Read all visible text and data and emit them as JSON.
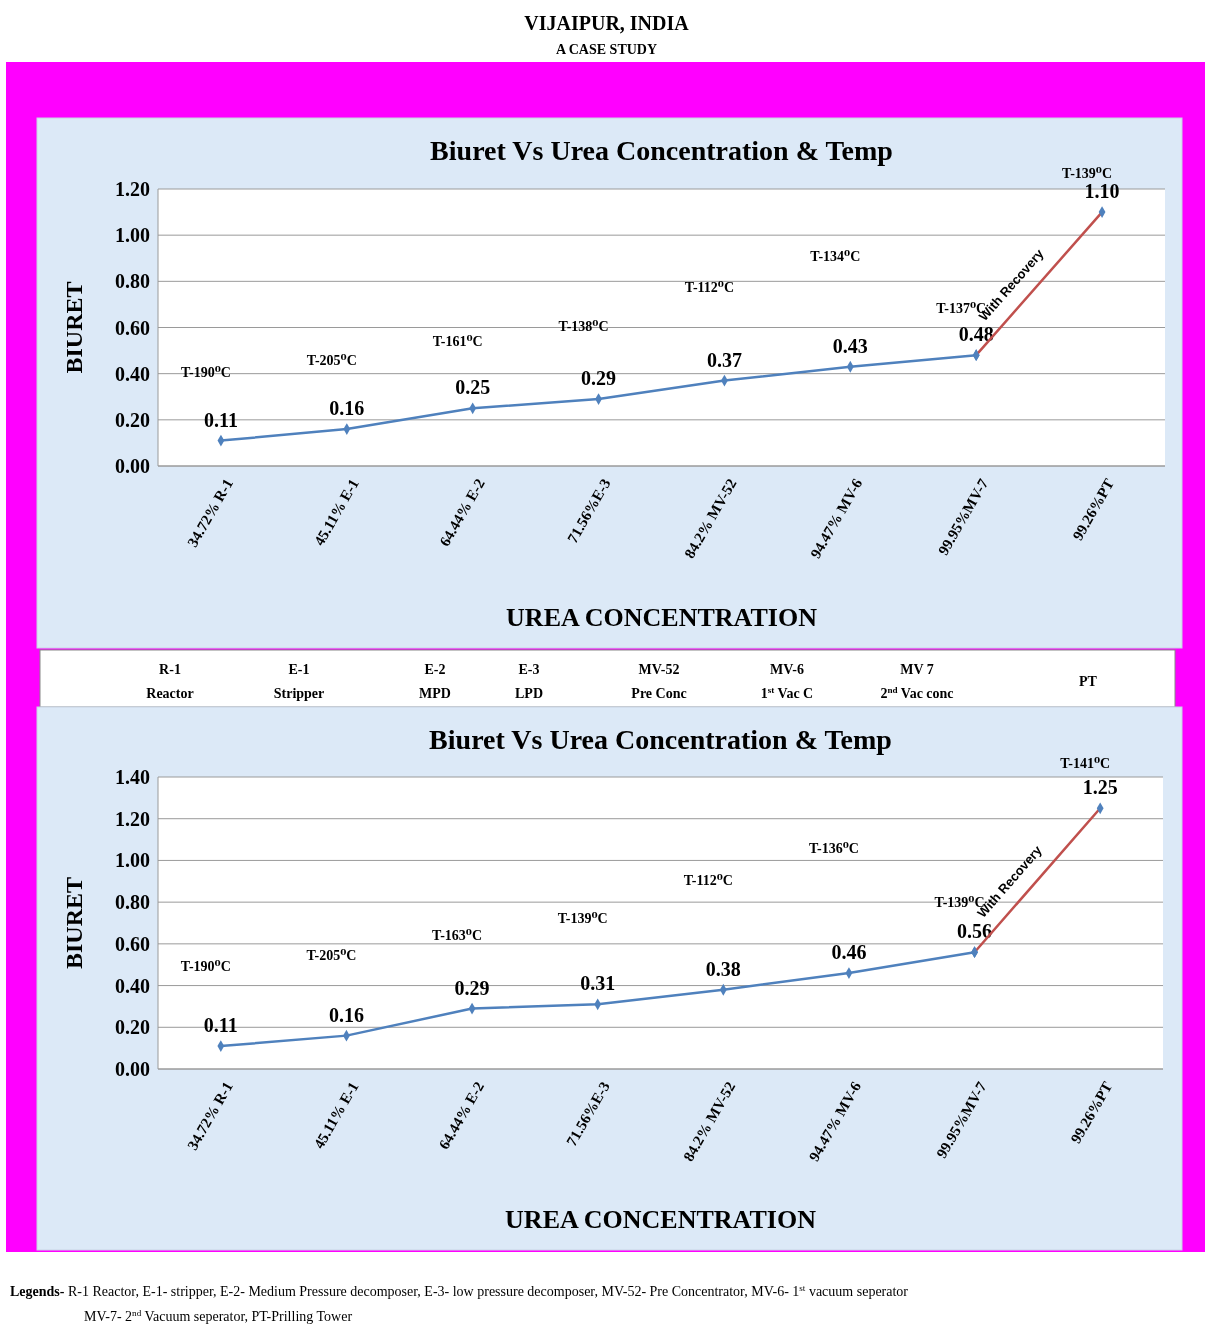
{
  "chart_data": [
    {
      "type": "other",
      "title": "VIJAIPUR, INDIA",
      "subtitle": "A CASE STUDY"
    },
    {
      "type": "line",
      "title": "Biuret Vs Urea Concentration & Temp",
      "xlabel": "UREA CONCENTRATION",
      "ylabel": "BIURET",
      "categories": [
        "34.72% R-1",
        "45.11% E-1",
        "64.44% E-2",
        "71.56%E-3",
        "84.2% MV-52",
        "94.47% MV-6",
        "99.95%MV-7",
        "99.26%PT"
      ],
      "series": [
        {
          "color": "#4f81bd",
          "values": [
            0.11,
            0.16,
            0.25,
            0.29,
            0.37,
            0.43,
            0.48,
            null
          ],
          "value_labels": [
            "0.11",
            "0.16",
            "0.25",
            "0.29",
            "0.37",
            "0.43",
            "0.48",
            null
          ]
        },
        {
          "color": "#c0504d",
          "values": [
            null,
            null,
            null,
            null,
            null,
            null,
            0.48,
            1.1
          ],
          "value_labels": [
            null,
            null,
            null,
            null,
            null,
            null,
            null,
            "1.10"
          ]
        }
      ],
      "ylim": [
        0,
        1.2
      ],
      "yticks": [
        {
          "value": 0,
          "label": "0.00"
        },
        {
          "value": 0.2,
          "label": "0.20"
        },
        {
          "value": 0.4,
          "label": "0.40"
        },
        {
          "value": 0.6,
          "label": "0.60"
        },
        {
          "value": 0.8,
          "label": "0.80"
        },
        {
          "value": 1,
          "label": "1.00"
        },
        {
          "value": 1.2,
          "label": "1.20"
        }
      ],
      "grid": "y",
      "marker": "diamond",
      "line_style": "solid",
      "annotations": [
        "T-190⁰C",
        "T-205⁰C",
        "T-161⁰C",
        "T-138⁰C",
        "T-112⁰C",
        "T-134⁰C",
        "T-137⁰C",
        "T-139⁰C",
        "With Recovery"
      ]
    },
    {
      "type": "other",
      "annotations": [
        "R-1\nReactor",
        "E-1\nStripper",
        "E-2\nMPD",
        "E-3\nLPD",
        "MV-52\nPre Conc",
        "MV-6\n1$^{st}$ Vac C",
        "MV 7\n2$^{nd}$ Vac conc",
        "PT"
      ]
    },
    {
      "type": "line",
      "title": "Biuret Vs Urea Concentration & Temp",
      "xlabel": "UREA CONCENTRATION",
      "ylabel": "BIURET",
      "categories": [
        "34.72% R-1",
        "45.11% E-1",
        "64.44% E-2",
        "71.56%E-3",
        "84.2% MV-52",
        "94.47% MV-6",
        "99.95%MV-7",
        "99.26%PT"
      ],
      "series": [
        {
          "color": "#4f81bd",
          "values": [
            0.11,
            0.16,
            0.29,
            0.31,
            0.38,
            0.46,
            0.56,
            null
          ],
          "value_labels": [
            "0.11",
            "0.16",
            "0.29",
            "0.31",
            "0.38",
            "0.46",
            "0.56",
            null
          ]
        },
        {
          "color": "#c0504d",
          "values": [
            null,
            null,
            null,
            null,
            null,
            null,
            0.56,
            1.25
          ],
          "value_labels": [
            null,
            null,
            null,
            null,
            null,
            null,
            null,
            "1.25"
          ]
        }
      ],
      "ylim": [
        0,
        1.4
      ],
      "yticks": [
        {
          "value": 0,
          "label": "0.00"
        },
        {
          "value": 0.2,
          "label": "0.20"
        },
        {
          "value": 0.4,
          "label": "0.40"
        },
        {
          "value": 0.6,
          "label": "0.60"
        },
        {
          "value": 0.8,
          "label": "0.80"
        },
        {
          "value": 1,
          "label": "1.00"
        },
        {
          "value": 1.2,
          "label": "1.20"
        },
        {
          "value": 1.4,
          "label": "1.40"
        }
      ],
      "grid": "y",
      "marker": "diamond",
      "line_style": "solid",
      "annotations": [
        "T-190⁰C",
        "T-205⁰C",
        "T-163⁰C",
        "T-139⁰C",
        "T-112⁰C",
        "T-136⁰C",
        "T-139⁰C",
        "T-141⁰C",
        "With Recovery"
      ]
    },
    {
      "type": "other",
      "annotations": [
        "Legends- R-1 Reactor, E-1- stripper, E-2- Medium Pressure decomposer, E-3- low pressure decomposer, MV-52- Pre Concentrator, MV-6- 1$^{st}$ vacuum seperator",
        "MV-7- 2$^{nd}$ Vacuum seperator, PT-Prilling Tower"
      ]
    }
  ]
}
